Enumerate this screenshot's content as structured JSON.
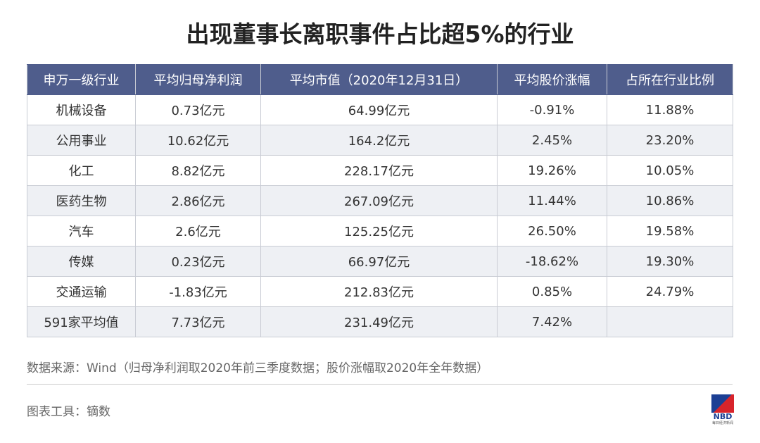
{
  "title": "出现董事长离职事件占比超5%的行业",
  "table": {
    "header": [
      "申万一级行业",
      "平均归母净利润",
      "平均市值（2020年12月31日）",
      "平均股价涨幅",
      "占所在行业比例"
    ],
    "rows": [
      [
        "机械设备",
        "0.73亿元",
        "64.99亿元",
        "-0.91%",
        "11.88%"
      ],
      [
        "公用事业",
        "10.62亿元",
        "164.2亿元",
        "2.45%",
        "23.20%"
      ],
      [
        "化工",
        "8.82亿元",
        "228.17亿元",
        "19.26%",
        "10.05%"
      ],
      [
        "医药生物",
        "2.86亿元",
        "267.09亿元",
        "11.44%",
        "10.86%"
      ],
      [
        "汽车",
        "2.6亿元",
        "125.25亿元",
        "26.50%",
        "19.58%"
      ],
      [
        "传媒",
        "0.23亿元",
        "66.97亿元",
        "-18.62%",
        "19.30%"
      ],
      [
        "交通运输",
        "-1.83亿元",
        "212.83亿元",
        "0.85%",
        "24.79%"
      ],
      [
        "591家平均值",
        "7.73亿元",
        "231.49亿元",
        "7.42%"
      ]
    ]
  },
  "source": "数据来源：Wind（归母净利润取2020年前三季度数据；股价涨幅取2020年全年数据）",
  "tool": "图表工具：镝数",
  "logo": {
    "name": "NBD",
    "sub": "每日经济新闻"
  }
}
